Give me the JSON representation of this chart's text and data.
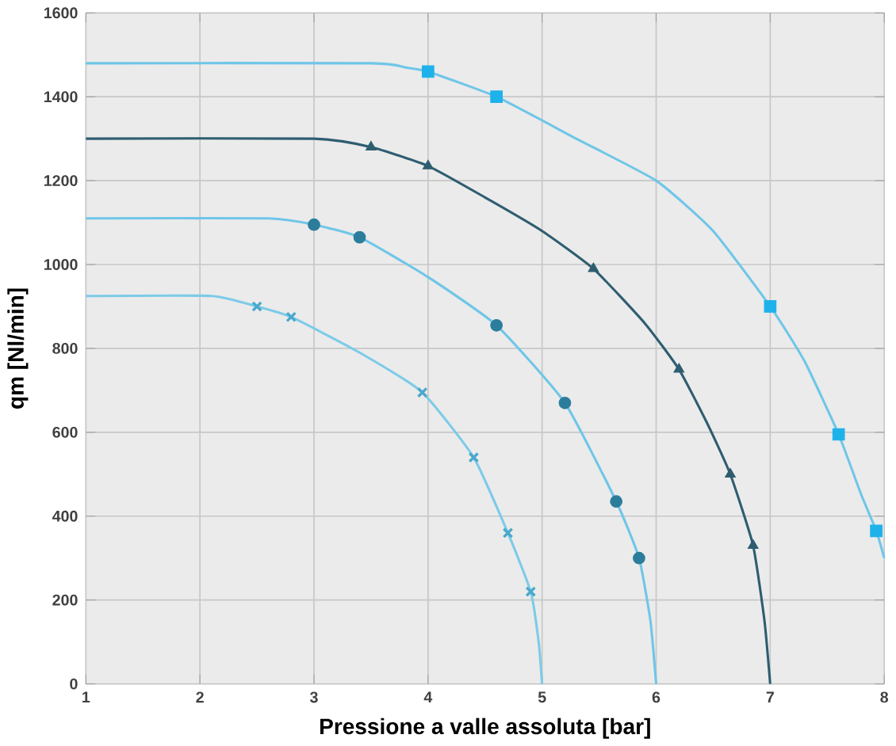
{
  "chart_data": {
    "type": "line",
    "xlabel": "Pressione a valle assoluta [bar]",
    "ylabel": "qm [Nl/min]",
    "xlim": [
      1,
      8
    ],
    "xticks": [
      1,
      2,
      3,
      4,
      5,
      6,
      7,
      8
    ],
    "ylim": [
      0,
      1600
    ],
    "yticks": [
      0,
      200,
      400,
      600,
      800,
      1000,
      1200,
      1400,
      1600
    ],
    "grid": true,
    "line_style": "solid",
    "series": [
      {
        "marker": "none",
        "color": "#6fc6e8",
        "x": [
          1,
          3.5,
          3.8,
          4,
          4.6,
          5.3,
          6,
          6.5,
          7,
          7.3,
          7.6,
          7.8,
          7.93,
          8
        ],
        "values": [
          1480,
          1480,
          1470,
          1460,
          1400,
          1300,
          1200,
          1080,
          900,
          770,
          595,
          450,
          365,
          300
        ]
      },
      {
        "marker": "none",
        "color": "#2e5d70",
        "x": [
          1,
          3,
          3.5,
          4,
          4.5,
          5,
          5.45,
          5.9,
          6.2,
          6.45,
          6.65,
          6.85,
          6.95,
          7
        ],
        "values": [
          1300,
          1300,
          1280,
          1235,
          1160,
          1080,
          990,
          860,
          750,
          620,
          500,
          330,
          150,
          0
        ]
      },
      {
        "marker": "none",
        "color": "#6fc6e8",
        "x": [
          1,
          2.6,
          3,
          3.4,
          4,
          4.6,
          5.2,
          5.65,
          5.85,
          5.95,
          6
        ],
        "values": [
          1110,
          1110,
          1095,
          1065,
          970,
          855,
          670,
          435,
          300,
          150,
          0
        ]
      },
      {
        "marker": "none",
        "color": "#7ccbe8",
        "x": [
          1,
          2.1,
          2.5,
          2.8,
          3.4,
          3.95,
          4.4,
          4.7,
          4.9,
          4.97,
          5
        ],
        "values": [
          925,
          925,
          900,
          875,
          790,
          695,
          540,
          360,
          220,
          100,
          0
        ]
      },
      {
        "type": "scatter",
        "marker": "square",
        "color": "#1fb2ea",
        "x": [
          4,
          4.6,
          7,
          7.6,
          7.93
        ],
        "values": [
          1460,
          1400,
          900,
          595,
          365
        ]
      },
      {
        "type": "scatter",
        "marker": "triangle",
        "color": "#2e5d70",
        "x": [
          3.5,
          4,
          5.45,
          6.2,
          6.65,
          6.85
        ],
        "values": [
          1280,
          1235,
          990,
          750,
          500,
          330
        ]
      },
      {
        "type": "scatter",
        "marker": "circle",
        "color": "#2b7d9b",
        "x": [
          3,
          3.4,
          4.6,
          5.2,
          5.65,
          5.85
        ],
        "values": [
          1095,
          1065,
          855,
          670,
          435,
          300
        ]
      },
      {
        "type": "scatter",
        "marker": "cross",
        "color": "#4aa8cc",
        "x": [
          2.5,
          2.8,
          3.95,
          4.4,
          4.7,
          4.9
        ],
        "values": [
          900,
          875,
          695,
          540,
          360,
          220
        ]
      }
    ]
  }
}
